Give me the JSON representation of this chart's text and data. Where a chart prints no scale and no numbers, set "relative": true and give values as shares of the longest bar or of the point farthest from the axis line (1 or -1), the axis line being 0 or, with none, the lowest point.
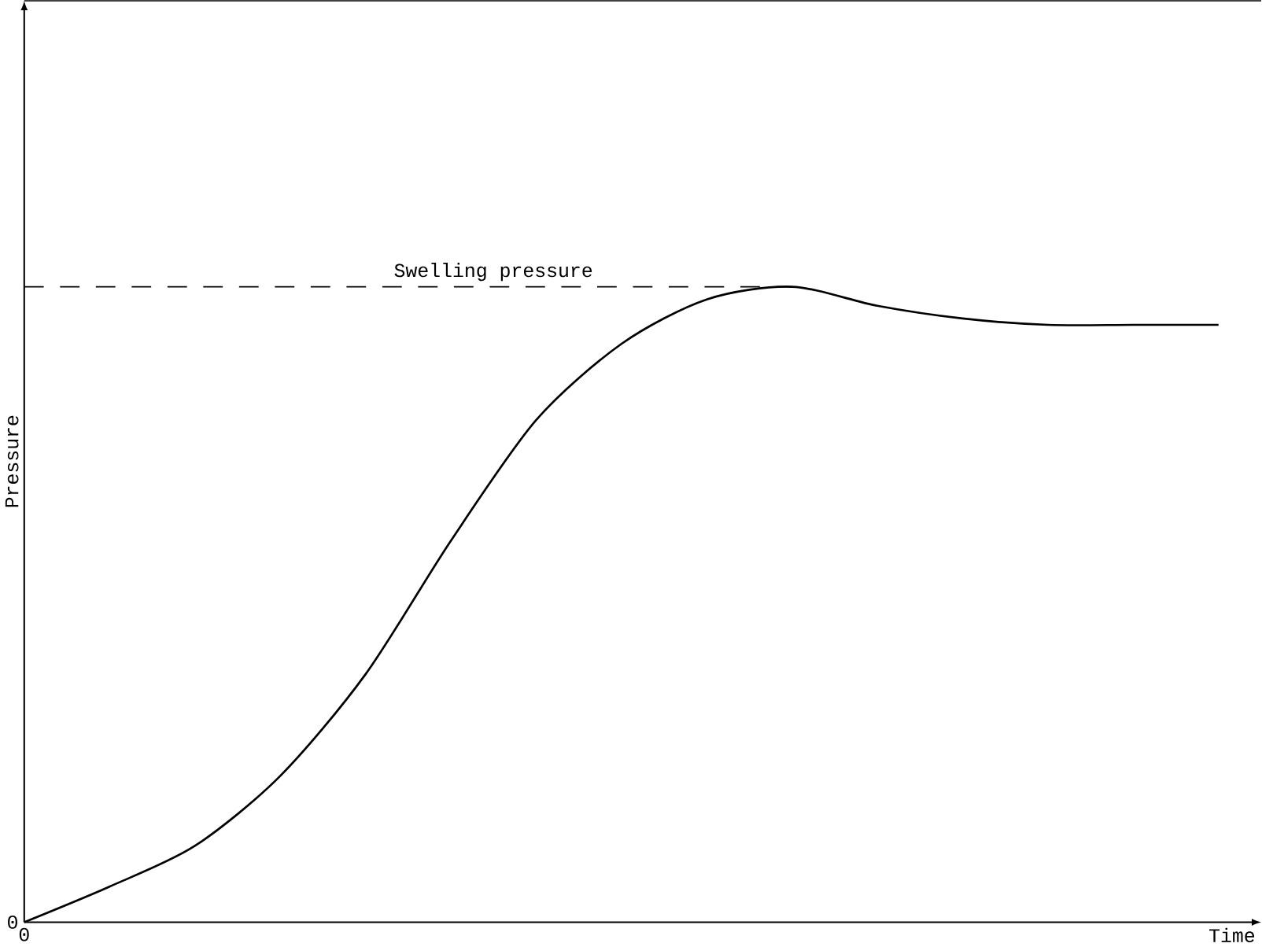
{
  "chart_data": {
    "type": "line",
    "relative": true,
    "xlabel": "Time",
    "ylabel": "Pressure",
    "categories": [
      null,
      null,
      null,
      null,
      null,
      null,
      null,
      null,
      null,
      null,
      null,
      null,
      null,
      null,
      null
    ],
    "series": [
      {
        "color": "#000000",
        "values": [
          0,
          0.056,
          0.12,
          0.23,
          0.39,
          0.6,
          0.79,
          0.91,
          0.98,
          1.0,
          0.97,
          0.95,
          0.94,
          0.94,
          0.94
        ]
      }
    ],
    "ref_lines": [
      {
        "axis": "y",
        "value": 1.0,
        "label": "Swelling pressure",
        "line_style": "dashed"
      }
    ],
    "annotations": [
      "0",
      "0"
    ],
    "marker": "none",
    "line_style": "solid"
  }
}
